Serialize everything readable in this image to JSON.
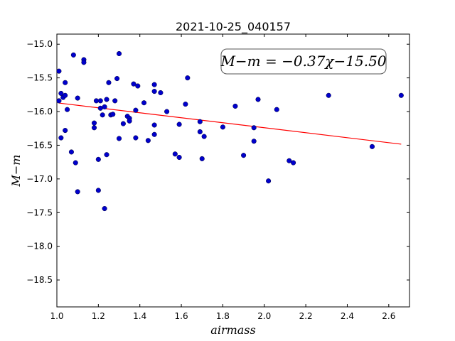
{
  "chart_data": {
    "type": "scatter",
    "title": "2021-10-25_040157",
    "xlabel": "airmass",
    "ylabel": "M−m",
    "xlim": [
      1.0,
      2.7
    ],
    "ylim": [
      -18.9,
      -14.85
    ],
    "y_inverted": true,
    "x_ticks": [
      1.0,
      1.2,
      1.4,
      1.6,
      1.8,
      2.0,
      2.2,
      2.4,
      2.6
    ],
    "x_tick_labels": [
      "1.0",
      "1.2",
      "1.4",
      "1.6",
      "1.8",
      "2.0",
      "2.2",
      "2.4",
      "2.6"
    ],
    "y_ticks": [
      -15.0,
      -15.5,
      -16.0,
      -16.5,
      -17.0,
      -17.5,
      -18.0,
      -18.5
    ],
    "y_tick_labels": [
      "−15.0",
      "−15.5",
      "−16.0",
      "−16.5",
      "−17.0",
      "−17.5",
      "−18.0",
      "−18.5"
    ],
    "grid": false,
    "annotation": "M−m = −0.37χ−15.50",
    "fit": {
      "slope": -0.37,
      "intercept": -15.5,
      "x_range": [
        1.01,
        2.66
      ],
      "color": "#ff0000"
    },
    "point_color": "#0000cc",
    "points": [
      [
        1.01,
        -15.4
      ],
      [
        1.01,
        -15.84
      ],
      [
        1.02,
        -16.39
      ],
      [
        1.02,
        -15.73
      ],
      [
        1.03,
        -15.79
      ],
      [
        1.04,
        -15.57
      ],
      [
        1.04,
        -16.28
      ],
      [
        1.04,
        -15.76
      ],
      [
        1.05,
        -15.97
      ],
      [
        1.07,
        -16.6
      ],
      [
        1.08,
        -15.16
      ],
      [
        1.09,
        -16.76
      ],
      [
        1.1,
        -17.19
      ],
      [
        1.1,
        -15.8
      ],
      [
        1.13,
        -15.23
      ],
      [
        1.13,
        -15.27
      ],
      [
        1.18,
        -16.17
      ],
      [
        1.18,
        -16.24
      ],
      [
        1.19,
        -15.84
      ],
      [
        1.2,
        -17.17
      ],
      [
        1.2,
        -16.71
      ],
      [
        1.21,
        -15.84
      ],
      [
        1.21,
        -15.95
      ],
      [
        1.22,
        -16.05
      ],
      [
        1.23,
        -15.93
      ],
      [
        1.23,
        -17.44
      ],
      [
        1.24,
        -16.64
      ],
      [
        1.24,
        -15.82
      ],
      [
        1.25,
        -15.57
      ],
      [
        1.26,
        -16.05
      ],
      [
        1.27,
        -16.04
      ],
      [
        1.28,
        -15.84
      ],
      [
        1.29,
        -15.51
      ],
      [
        1.3,
        -16.4
      ],
      [
        1.3,
        -15.14
      ],
      [
        1.32,
        -16.18
      ],
      [
        1.34,
        -16.07
      ],
      [
        1.35,
        -16.1
      ],
      [
        1.35,
        -16.14
      ],
      [
        1.37,
        -15.59
      ],
      [
        1.38,
        -16.39
      ],
      [
        1.38,
        -15.98
      ],
      [
        1.39,
        -15.62
      ],
      [
        1.42,
        -15.87
      ],
      [
        1.44,
        -16.43
      ],
      [
        1.47,
        -15.6
      ],
      [
        1.47,
        -15.7
      ],
      [
        1.47,
        -16.2
      ],
      [
        1.47,
        -16.34
      ],
      [
        1.5,
        -15.72
      ],
      [
        1.53,
        -16.0
      ],
      [
        1.57,
        -16.63
      ],
      [
        1.59,
        -16.68
      ],
      [
        1.59,
        -16.19
      ],
      [
        1.62,
        -15.89
      ],
      [
        1.63,
        -15.5
      ],
      [
        1.69,
        -16.3
      ],
      [
        1.69,
        -16.15
      ],
      [
        1.7,
        -16.7
      ],
      [
        1.71,
        -16.37
      ],
      [
        1.8,
        -16.23
      ],
      [
        1.86,
        -15.92
      ],
      [
        1.9,
        -16.65
      ],
      [
        1.95,
        -16.44
      ],
      [
        1.95,
        -16.24
      ],
      [
        1.97,
        -15.82
      ],
      [
        2.02,
        -17.03
      ],
      [
        2.06,
        -15.97
      ],
      [
        2.12,
        -16.73
      ],
      [
        2.14,
        -16.76
      ],
      [
        2.31,
        -15.76
      ],
      [
        2.52,
        -16.52
      ],
      [
        2.66,
        -15.76
      ]
    ]
  }
}
